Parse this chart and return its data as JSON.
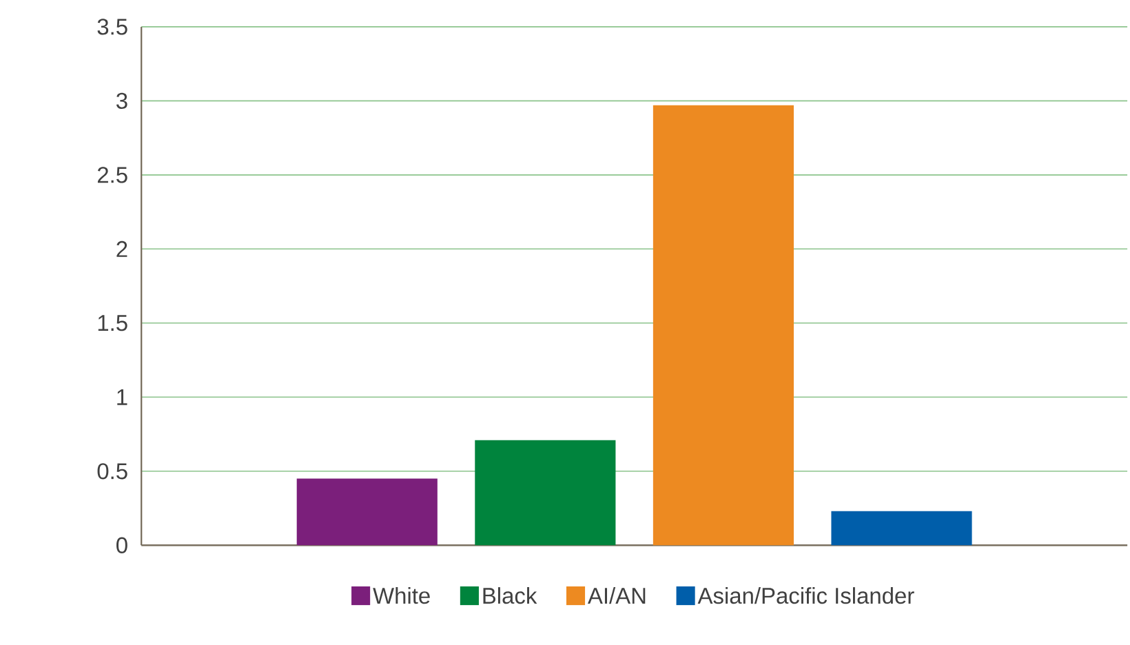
{
  "chart_data": {
    "type": "bar",
    "categories": [
      null
    ],
    "series": [
      {
        "name": "White",
        "color": "#7b1f7b",
        "values": [
          0.45
        ]
      },
      {
        "name": "Black",
        "color": "#00843d",
        "values": [
          0.71
        ]
      },
      {
        "name": "AI/AN",
        "color": "#ed8a21",
        "values": [
          2.97
        ]
      },
      {
        "name": "Asian/Pacific Islander",
        "color": "#005eaa",
        "values": [
          0.23
        ]
      }
    ],
    "ylim": [
      0,
      3.5
    ],
    "yticks": [
      0,
      0.5,
      1,
      1.5,
      2,
      2.5,
      3,
      3.5
    ],
    "grid": "y",
    "legend": "bottom"
  }
}
